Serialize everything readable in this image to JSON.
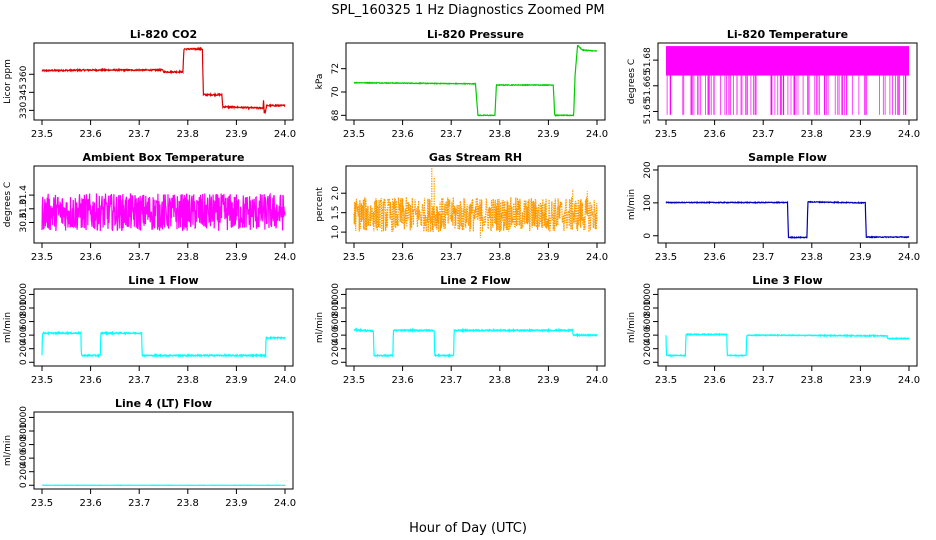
{
  "figure": {
    "title": "SPL_160325  1 Hz Diagnostics Zoomed PM",
    "xlabel": "Hour of Day (UTC)"
  },
  "chart_data": [
    {
      "type": "line",
      "title": "Li-820 CO2",
      "ylabel": "Licor ppm",
      "color": "#dd0000",
      "xlim": [
        23.5,
        24.0
      ],
      "ylim": [
        322,
        386
      ],
      "xticks": [
        "23.5",
        "23.6",
        "23.7",
        "23.8",
        "23.9",
        "24.0"
      ],
      "yticks": [
        {
          "value": 330,
          "label": "330"
        },
        {
          "value": 345,
          "label": "345"
        },
        {
          "value": 360,
          "label": "360"
        }
      ],
      "series": [
        {
          "name": "Li-820 CO2",
          "noise": 0.6,
          "points": [
            [
              23.5,
              363
            ],
            [
              23.6,
              363.5
            ],
            [
              23.7,
              363.5
            ],
            [
              23.749,
              363.5
            ],
            [
              23.75,
              362
            ],
            [
              23.79,
              362
            ],
            [
              23.792,
              381
            ],
            [
              23.83,
              381
            ],
            [
              23.832,
              343
            ],
            [
              23.87,
              343
            ],
            [
              23.872,
              333
            ],
            [
              23.94,
              332
            ],
            [
              23.955,
              332
            ],
            [
              23.956,
              341
            ],
            [
              23.957,
              328
            ],
            [
              23.96,
              329
            ],
            [
              23.962,
              334
            ],
            [
              24.0,
              334
            ]
          ]
        }
      ]
    },
    {
      "type": "line",
      "title": "Li-820 Pressure",
      "ylabel": "kPa",
      "color": "#00cc00",
      "xlim": [
        23.5,
        24.0
      ],
      "ylim": [
        67.6,
        74.2
      ],
      "xticks": [
        "23.5",
        "23.6",
        "23.7",
        "23.8",
        "23.9",
        "24.0"
      ],
      "yticks": [
        {
          "value": 68,
          "label": "68"
        },
        {
          "value": 70,
          "label": "70"
        },
        {
          "value": 72,
          "label": "72"
        }
      ],
      "series": [
        {
          "name": "Li-820 Pressure",
          "noise": 0.03,
          "points": [
            [
              23.5,
              70.8
            ],
            [
              23.75,
              70.7
            ],
            [
              23.755,
              68.0
            ],
            [
              23.79,
              68.0
            ],
            [
              23.793,
              70.6
            ],
            [
              23.91,
              70.6
            ],
            [
              23.913,
              68.0
            ],
            [
              23.952,
              68.0
            ],
            [
              23.955,
              71.5
            ],
            [
              23.96,
              74.0
            ],
            [
              23.97,
              73.6
            ],
            [
              24.0,
              73.5
            ]
          ]
        }
      ]
    },
    {
      "type": "line",
      "title": "Li-820 Temperature",
      "ylabel": "degrees C",
      "color": "#ff00ff",
      "xlim": [
        23.5,
        24.0
      ],
      "ylim": [
        51.645,
        51.69
      ],
      "xticks": [
        "23.5",
        "23.6",
        "23.7",
        "23.8",
        "23.9",
        "24.0"
      ],
      "yticks": [
        {
          "value": 51.65,
          "label": "51.65"
        },
        {
          "value": 51.665,
          "label": "51.665"
        },
        {
          "value": 51.68,
          "label": "51.68"
        }
      ],
      "series": [
        {
          "name": "Li-820 Temperature",
          "style": "digital",
          "high": 51.688,
          "low": 51.671,
          "dip_low": 51.648,
          "points": [
            [
              23.5,
              51.688
            ],
            [
              24.0,
              51.688
            ]
          ]
        }
      ]
    },
    {
      "type": "line",
      "title": "Ambient Box Temperature",
      "ylabel": "degrees C",
      "color": "#ff00ff",
      "xlim": [
        23.5,
        24.0
      ],
      "ylim": [
        30.0,
        32.25
      ],
      "xticks": [
        "23.5",
        "23.6",
        "23.7",
        "23.8",
        "23.9",
        "24.0"
      ],
      "yticks": [
        {
          "value": 30.6,
          "label": "30.6"
        },
        {
          "value": 31.0,
          "label": "31.0"
        },
        {
          "value": 31.4,
          "label": "31.4"
        }
      ],
      "series": [
        {
          "name": "Ambient Box Temperature",
          "noise": 0.55,
          "points": [
            [
              23.5,
              30.9
            ],
            [
              24.0,
              30.9
            ]
          ]
        }
      ]
    },
    {
      "type": "line",
      "title": "Gas Stream RH",
      "ylabel": "percent",
      "color": "#ff9900",
      "xlim": [
        23.5,
        24.0
      ],
      "ylim": [
        0.72,
        2.7
      ],
      "xticks": [
        "23.5",
        "23.6",
        "23.7",
        "23.8",
        "23.9",
        "24.0"
      ],
      "yticks": [
        {
          "value": 1.0,
          "label": "1.0"
        },
        {
          "value": 1.5,
          "label": "1.5"
        },
        {
          "value": 2.0,
          "label": "2.0"
        }
      ],
      "series": [
        {
          "name": "Gas Stream RH",
          "noise": 0.45,
          "dotted": true,
          "spikes": [
            [
              23.66,
              2.65
            ],
            [
              23.665,
              2.4
            ],
            [
              23.95,
              2.1
            ],
            [
              23.98,
              2.05
            ],
            [
              23.76,
              0.85
            ]
          ],
          "points": [
            [
              23.5,
              1.45
            ],
            [
              24.0,
              1.45
            ]
          ]
        }
      ]
    },
    {
      "type": "line",
      "title": "Sample Flow",
      "ylabel": "ml/min",
      "color": "#0000bb",
      "xlim": [
        23.5,
        24.0
      ],
      "ylim": [
        -22,
        212
      ],
      "xticks": [
        "23.5",
        "23.6",
        "23.7",
        "23.8",
        "23.9",
        "24.0"
      ],
      "yticks": [
        {
          "value": 0,
          "label": "0"
        },
        {
          "value": 100,
          "label": "100"
        },
        {
          "value": 200,
          "label": "200"
        }
      ],
      "series": [
        {
          "name": "Sample Flow",
          "noise": 1.2,
          "points": [
            [
              23.5,
              101
            ],
            [
              23.75,
              101
            ],
            [
              23.752,
              -5
            ],
            [
              23.79,
              -5
            ],
            [
              23.792,
              103
            ],
            [
              23.91,
              100
            ],
            [
              23.912,
              -4
            ],
            [
              24.0,
              -4
            ]
          ]
        }
      ]
    },
    {
      "type": "line",
      "title": "Line 1 Flow",
      "ylabel": "ml/min",
      "color": "#00ffff",
      "xlim": [
        23.5,
        24.0
      ],
      "ylim": [
        -55,
        1080
      ],
      "xticks": [
        "23.5",
        "23.6",
        "23.7",
        "23.8",
        "23.9",
        "24.0"
      ],
      "yticks": [
        {
          "value": 0,
          "label": "0"
        },
        {
          "value": 200,
          "label": "200"
        },
        {
          "value": 400,
          "label": "400"
        },
        {
          "value": 600,
          "label": "600"
        },
        {
          "value": 800,
          "label": "800"
        },
        {
          "value": 1000,
          "label": "1000"
        }
      ],
      "series": [
        {
          "name": "Line 1 Flow",
          "noise": 10,
          "points": [
            [
              23.5,
              100
            ],
            [
              23.501,
              430
            ],
            [
              23.58,
              430
            ],
            [
              23.581,
              100
            ],
            [
              23.62,
              100
            ],
            [
              23.621,
              430
            ],
            [
              23.705,
              430
            ],
            [
              23.706,
              100
            ],
            [
              23.96,
              100
            ],
            [
              23.961,
              360
            ],
            [
              24.0,
              360
            ]
          ]
        }
      ]
    },
    {
      "type": "line",
      "title": "Line 2 Flow",
      "ylabel": "ml/min",
      "color": "#00ffff",
      "xlim": [
        23.5,
        24.0
      ],
      "ylim": [
        -55,
        1080
      ],
      "xticks": [
        "23.5",
        "23.6",
        "23.7",
        "23.8",
        "23.9",
        "24.0"
      ],
      "yticks": [
        {
          "value": 0,
          "label": "0"
        },
        {
          "value": 200,
          "label": "200"
        },
        {
          "value": 400,
          "label": "400"
        },
        {
          "value": 600,
          "label": "600"
        },
        {
          "value": 800,
          "label": "800"
        },
        {
          "value": 1000,
          "label": "1000"
        }
      ],
      "series": [
        {
          "name": "Line 2 Flow",
          "noise": 10,
          "points": [
            [
              23.5,
              480
            ],
            [
              23.54,
              460
            ],
            [
              23.541,
              100
            ],
            [
              23.58,
              100
            ],
            [
              23.581,
              470
            ],
            [
              23.665,
              470
            ],
            [
              23.666,
              100
            ],
            [
              23.705,
              100
            ],
            [
              23.706,
              470
            ],
            [
              23.95,
              470
            ],
            [
              23.951,
              400
            ],
            [
              24.0,
              400
            ]
          ]
        }
      ]
    },
    {
      "type": "line",
      "title": "Line 3 Flow",
      "ylabel": "ml/min",
      "color": "#00ffff",
      "xlim": [
        23.5,
        24.0
      ],
      "ylim": [
        -55,
        1080
      ],
      "xticks": [
        "23.5",
        "23.6",
        "23.7",
        "23.8",
        "23.9",
        "24.0"
      ],
      "yticks": [
        {
          "value": 0,
          "label": "0"
        },
        {
          "value": 200,
          "label": "200"
        },
        {
          "value": 400,
          "label": "400"
        },
        {
          "value": 600,
          "label": "600"
        },
        {
          "value": 800,
          "label": "800"
        },
        {
          "value": 1000,
          "label": "1000"
        }
      ],
      "series": [
        {
          "name": "Line 3 Flow",
          "noise": 7,
          "points": [
            [
              23.5,
              400
            ],
            [
              23.501,
              100
            ],
            [
              23.54,
              100
            ],
            [
              23.541,
              410
            ],
            [
              23.625,
              410
            ],
            [
              23.626,
              100
            ],
            [
              23.665,
              100
            ],
            [
              23.666,
              400
            ],
            [
              23.955,
              390
            ],
            [
              23.956,
              350
            ],
            [
              24.0,
              350
            ]
          ]
        }
      ]
    },
    {
      "type": "line",
      "title": "Line 4 (LT) Flow",
      "ylabel": "ml/min",
      "color": "#00ffff",
      "xlim": [
        23.5,
        24.0
      ],
      "ylim": [
        -55,
        1080
      ],
      "xticks": [
        "23.5",
        "23.6",
        "23.7",
        "23.8",
        "23.9",
        "24.0"
      ],
      "yticks": [
        {
          "value": 0,
          "label": "0"
        },
        {
          "value": 200,
          "label": "200"
        },
        {
          "value": 400,
          "label": "400"
        },
        {
          "value": 600,
          "label": "600"
        },
        {
          "value": 800,
          "label": "800"
        },
        {
          "value": 1000,
          "label": "1000"
        }
      ],
      "series": [
        {
          "name": "Line 4 (LT) Flow",
          "noise": 2,
          "spikes": [
            [
              23.96,
              -12
            ]
          ],
          "points": [
            [
              23.5,
              0
            ],
            [
              24.0,
              0
            ]
          ]
        }
      ]
    }
  ]
}
